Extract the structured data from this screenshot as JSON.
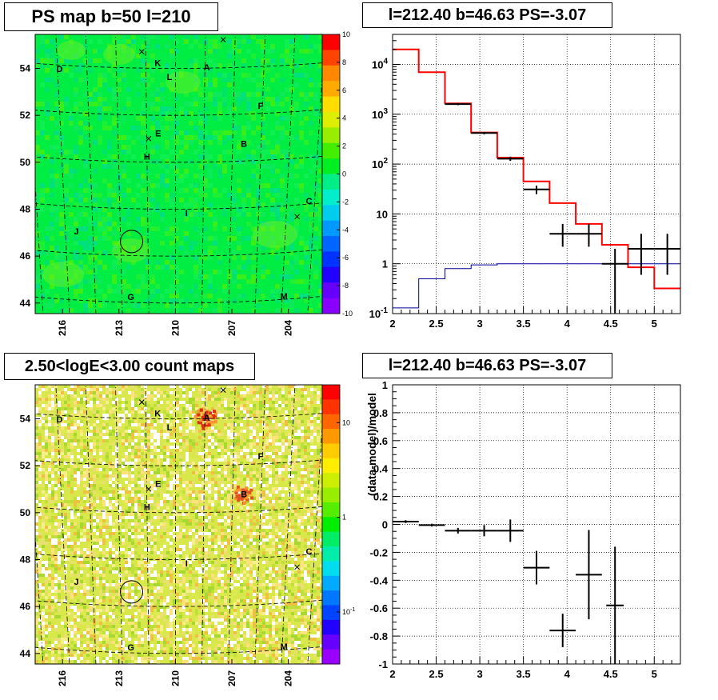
{
  "panels": {
    "top_left_title": "PS map b=50 l=210",
    "top_right_title": "l=212.40 b=46.63 PS=-3.07",
    "bottom_left_title": "2.50<logE<3.00 count maps",
    "bottom_right_title": "l=212.40 b=46.63 PS=-3.07"
  },
  "colors": {
    "model_line": "#ff0000",
    "data_markers": "#000000",
    "background_line": "#000099",
    "ps_map_fill": "#00ee44",
    "count_map_fill": "#d8e84a"
  },
  "chart_data": [
    {
      "id": "ps_map",
      "type": "heatmap",
      "title": "PS map b=50 l=210",
      "x_ticks": [
        "216",
        "213",
        "210",
        "207",
        "204"
      ],
      "y_ticks": [
        "54",
        "52",
        "50",
        "48",
        "46",
        "44"
      ],
      "colorbar_ticks": [
        "10",
        "8",
        "6",
        "4",
        "2",
        "0",
        "-2",
        "-4",
        "-6",
        "-8",
        "-10"
      ],
      "colorbar_range": [
        -10,
        10
      ],
      "sources": [
        {
          "label": "A",
          "l": 208.4,
          "b": 54.0
        },
        {
          "label": "B",
          "l": 206.4,
          "b": 50.7
        },
        {
          "label": "C",
          "l": 202.8,
          "b": 48.1
        },
        {
          "label": "D",
          "l": 215.9,
          "b": 53.8
        },
        {
          "label": "E",
          "l": 210.9,
          "b": 51.2
        },
        {
          "label": "F",
          "l": 205.6,
          "b": 52.3
        },
        {
          "label": "G",
          "l": 212.5,
          "b": 44.2
        },
        {
          "label": "H",
          "l": 211.5,
          "b": 50.2
        },
        {
          "label": "I",
          "l": 209.4,
          "b": 47.8
        },
        {
          "label": "J",
          "l": 215.4,
          "b": 46.9
        },
        {
          "label": "K",
          "l": 210.9,
          "b": 54.2
        },
        {
          "label": "L",
          "l": 210.3,
          "b": 53.6
        },
        {
          "label": "M",
          "l": 203.9,
          "b": 44.1
        }
      ],
      "crosses": [
        {
          "l": 211.7,
          "b": 54.7
        },
        {
          "l": 207.6,
          "b": 55.2
        },
        {
          "l": 211.4,
          "b": 51.0
        },
        {
          "l": 203.4,
          "b": 47.5
        }
      ],
      "circle": {
        "l": 212.4,
        "b": 46.6
      }
    },
    {
      "id": "spectrum",
      "type": "line",
      "title": "l=212.40 b=46.63 PS=-3.07",
      "xlabel": "",
      "ylabel": "",
      "xlim": [
        2,
        5.3
      ],
      "ylim": [
        0.1,
        40000
      ],
      "y_scale": "log",
      "x_ticks": [
        "2",
        "2.5",
        "3",
        "3.5",
        "4",
        "4.5",
        "5"
      ],
      "y_ticks": [
        {
          "v": 0.1,
          "label": "10",
          "exp": "-1"
        },
        {
          "v": 1,
          "label": "1",
          "exp": ""
        },
        {
          "v": 10,
          "label": "10",
          "exp": ""
        },
        {
          "v": 100,
          "label": "10",
          "exp": "2"
        },
        {
          "v": 1000,
          "label": "10",
          "exp": "3"
        },
        {
          "v": 10000,
          "label": "10",
          "exp": "4"
        }
      ],
      "bin_edges": [
        2.0,
        2.3,
        2.6,
        2.9,
        3.2,
        3.5,
        3.8,
        4.1,
        4.4,
        4.7,
        5.0,
        5.3
      ],
      "series": [
        {
          "name": "",
          "kind": "model",
          "values": [
            20000,
            7000,
            1650,
            430,
            135,
            45,
            16.5,
            6.3,
            2.4,
            0.85,
            0.32
          ]
        },
        {
          "name": "",
          "kind": "background",
          "values": [
            0.13,
            0.5,
            0.8,
            0.95,
            1.0,
            1.0,
            1.0,
            1.0,
            1.0,
            1.0,
            1.0
          ]
        },
        {
          "name": "",
          "kind": "data",
          "points": [
            {
              "x": 2.75,
              "y": 1600,
              "xerr": 0.15,
              "ylo": 1520,
              "yhi": 1680
            },
            {
              "x": 3.05,
              "y": 420,
              "xerr": 0.15,
              "ylo": 395,
              "yhi": 445
            },
            {
              "x": 3.35,
              "y": 128,
              "xerr": 0.15,
              "ylo": 116,
              "yhi": 141
            },
            {
              "x": 3.65,
              "y": 31,
              "xerr": 0.15,
              "ylo": 25,
              "yhi": 37
            },
            {
              "x": 3.95,
              "y": 4,
              "xerr": 0.15,
              "ylo": 2.2,
              "yhi": 6.3
            },
            {
              "x": 4.25,
              "y": 4,
              "xerr": 0.15,
              "ylo": 2.2,
              "yhi": 6.3
            },
            {
              "x": 4.55,
              "y": 1.0,
              "xerr": 0.15,
              "ylo": 0.1,
              "yhi": 2.0
            },
            {
              "x": 4.85,
              "y": 2.0,
              "xerr": 0.15,
              "ylo": 0.6,
              "yhi": 4.0
            },
            {
              "x": 5.15,
              "y": 2.0,
              "xerr": 0.15,
              "ylo": 0.6,
              "yhi": 4.0
            }
          ]
        }
      ]
    },
    {
      "id": "count_map",
      "type": "heatmap",
      "title": "2.50<logE<3.00 count maps",
      "x_ticks": [
        "216",
        "213",
        "210",
        "207",
        "204"
      ],
      "y_ticks": [
        "54",
        "52",
        "50",
        "48",
        "46",
        "44"
      ],
      "colorbar_ticks": [
        {
          "v": 10,
          "label": "10",
          "exp": ""
        },
        {
          "v": 1,
          "label": "1",
          "exp": ""
        },
        {
          "v": 0.1,
          "label": "10",
          "exp": "-1"
        }
      ]
    },
    {
      "id": "residuals",
      "type": "scatter",
      "title": "l=212.40 b=46.63 PS=-3.07",
      "xlabel": "",
      "ylabel": "(data-model)/model",
      "xlim": [
        2,
        5.3
      ],
      "ylim": [
        -1,
        1
      ],
      "x_ticks": [
        "2",
        "2.5",
        "3",
        "3.5",
        "4",
        "4.5",
        "5"
      ],
      "y_ticks": [
        "1",
        "0.8",
        "0.6",
        "0.4",
        "0.2",
        "0",
        "-0.2",
        "-0.4",
        "-0.6",
        "-0.8",
        "-1"
      ],
      "points": [
        {
          "x": 2.15,
          "y": 0.02,
          "xerr": 0.15,
          "yerr": 0.01
        },
        {
          "x": 2.45,
          "y": -0.005,
          "xerr": 0.15,
          "yerr": 0.01
        },
        {
          "x": 2.75,
          "y": -0.045,
          "xerr": 0.15,
          "yerr": 0.02
        },
        {
          "x": 3.05,
          "y": -0.045,
          "xerr": 0.15,
          "yerr": 0.04
        },
        {
          "x": 3.35,
          "y": -0.045,
          "xerr": 0.15,
          "yerr": 0.08
        },
        {
          "x": 3.65,
          "y": -0.31,
          "xerr": 0.15,
          "yerr": 0.12
        },
        {
          "x": 3.95,
          "y": -0.76,
          "xerr": 0.15,
          "yerr": 0.12
        },
        {
          "x": 4.25,
          "y": -0.36,
          "xerr": 0.15,
          "yerr": 0.32
        },
        {
          "x": 4.55,
          "y": -0.58,
          "xerr": 0.1,
          "yerr": 0.42
        }
      ]
    }
  ]
}
